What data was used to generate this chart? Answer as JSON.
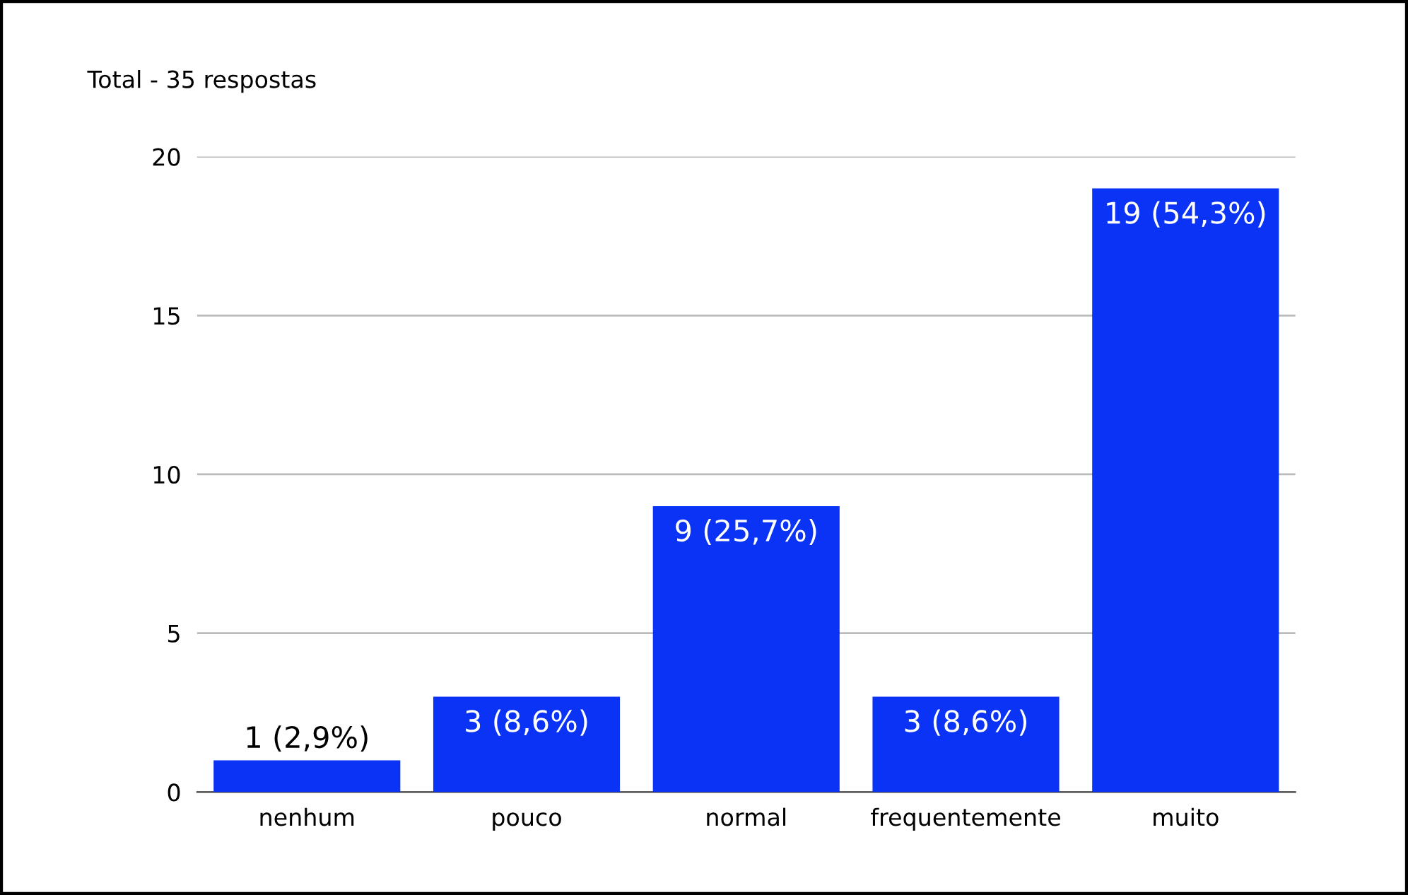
{
  "chart_data": {
    "type": "bar",
    "title": "Total - 35 respostas",
    "categories": [
      "nenhum",
      "pouco",
      "normal",
      "frequentemente",
      "muito"
    ],
    "values": [
      1,
      3,
      9,
      3,
      19
    ],
    "value_labels": [
      "1 (2,9%)",
      "3 (8,6%)",
      "9 (25,7%)",
      "3 (8,6%)",
      "19 (54,3%)"
    ],
    "color": "#0a33f5",
    "ylim": [
      0,
      20
    ],
    "yticks": [
      0,
      5,
      10,
      15,
      20
    ],
    "grid": "y"
  }
}
